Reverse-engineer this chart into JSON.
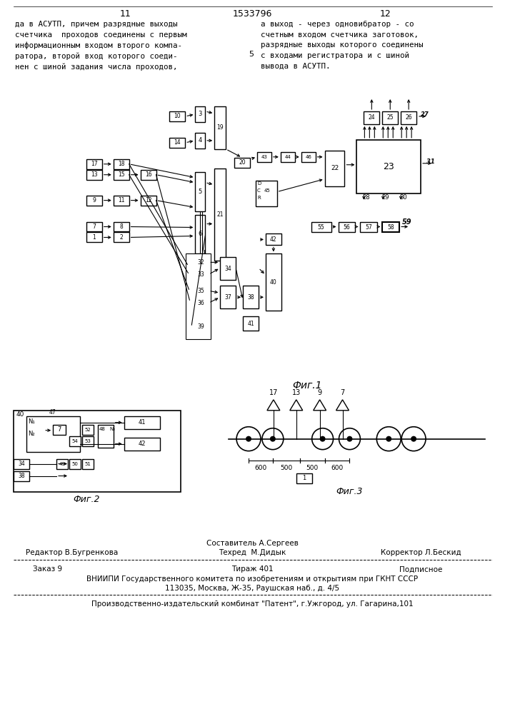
{
  "page_num_left": "11",
  "page_num_center": "1533796",
  "page_num_right": "12",
  "text_left": "да в АСУТП, причем разрядные выходы\nсчетчика  проходов соединены с первым\nинформационным входом второго компа-\nратора, второй вход которого соеди-\nнен с шиной задания числа проходов,",
  "text_right": "а выход - через одновибратор - со\nсчетным входом счетчика заготовок,\nразрядные выходы которого соединены\nс входами регистратора и с шиной\nвывода в АСУТП.",
  "num_5": "5",
  "fig1_label": "Фиг.1",
  "fig2_label": "Фиг.2",
  "fig3_label": "Фиг.3",
  "footer_sostavitel": "Составитель А.Сергеев",
  "footer_editor": "Редактор В.Бугренкова",
  "footer_techred": "Техред  М.Дидык",
  "footer_corrector": "Корректор Л.Бескид",
  "footer_order": "Заказ 9",
  "footer_tirage": "Тираж 401",
  "footer_podpisnoe": "Подписное",
  "footer_vniiipi": "ВНИИПИ Государственного комитета по изобретениям и открытиям при ГКНТ СССР",
  "footer_address": "113035, Москва, Ж-35, Раушская наб., д. 4/5",
  "footer_factory": "Производственно-издательский комбинат \"Патент\", г.Ужгород, ул. Гагарина,101",
  "bg_color": "#ffffff",
  "lc": "#000000"
}
